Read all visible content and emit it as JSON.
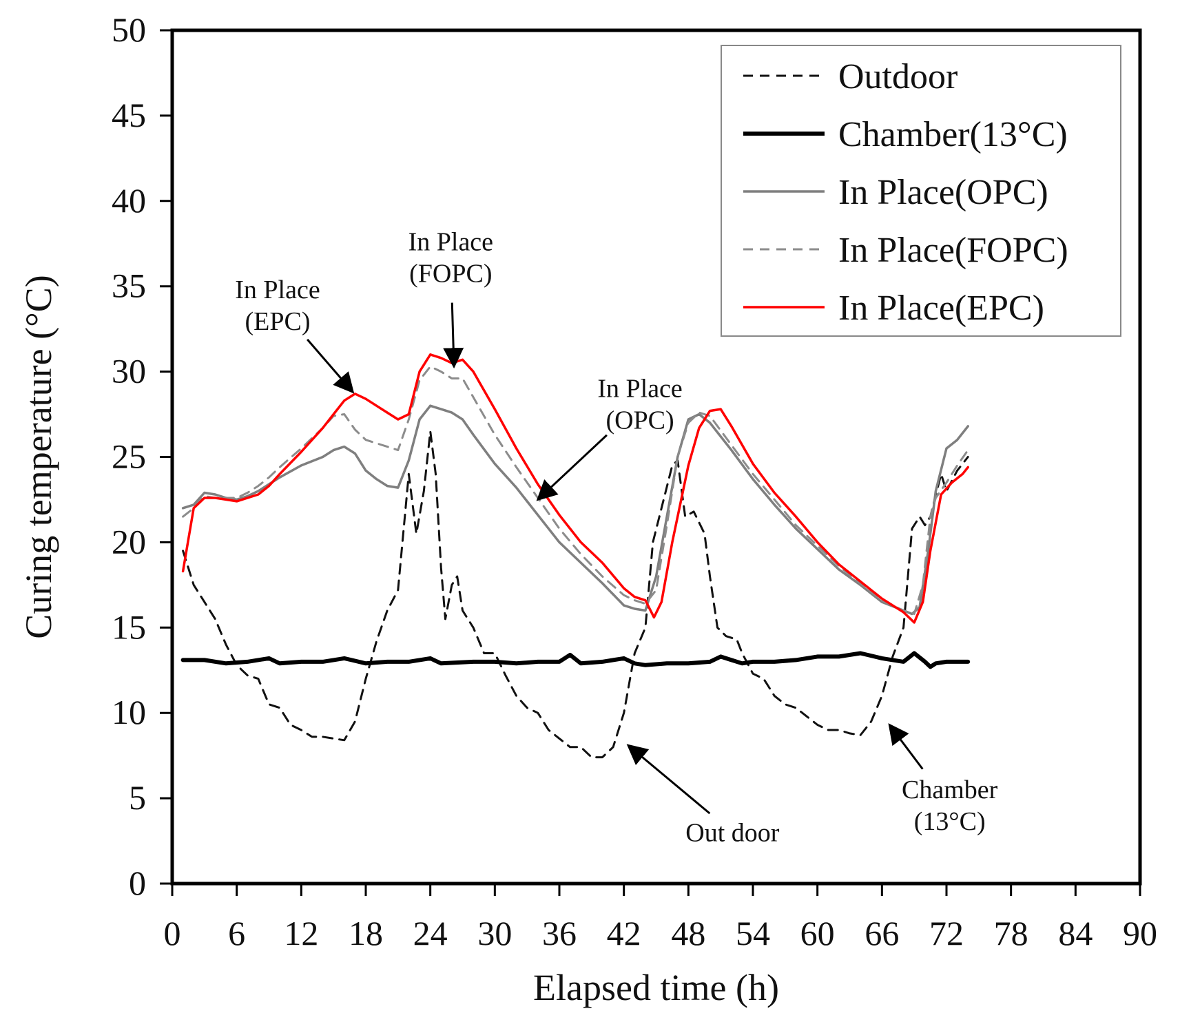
{
  "chart_data": {
    "type": "line",
    "title": "",
    "xlabel": "Elapsed time (h)",
    "ylabel": "Curing temperature (°C)",
    "xlim": [
      0,
      90
    ],
    "ylim": [
      0,
      50
    ],
    "x_ticks": [
      "0",
      "6",
      "12",
      "18",
      "24",
      "30",
      "36",
      "42",
      "48",
      "54",
      "60",
      "66",
      "72",
      "78",
      "84",
      "90"
    ],
    "y_ticks": [
      "0",
      "5",
      "10",
      "15",
      "20",
      "25",
      "30",
      "35",
      "40",
      "45",
      "50"
    ],
    "grid": false,
    "legend_position": "top-right",
    "series": [
      {
        "name": "Outdoor",
        "color": "#111111",
        "style": "dashed",
        "points": [
          [
            1,
            19.5
          ],
          [
            2,
            17.5
          ],
          [
            3,
            16.5
          ],
          [
            4,
            15.5
          ],
          [
            5,
            14
          ],
          [
            6,
            12.8
          ],
          [
            7,
            12.2
          ],
          [
            8,
            12
          ],
          [
            9,
            10.5
          ],
          [
            10,
            10.3
          ],
          [
            11,
            9.3
          ],
          [
            12,
            9
          ],
          [
            13,
            8.6
          ],
          [
            14,
            8.6
          ],
          [
            15,
            8.5
          ],
          [
            16,
            8.4
          ],
          [
            17,
            9.5
          ],
          [
            18,
            12
          ],
          [
            19,
            14.2
          ],
          [
            20,
            16
          ],
          [
            21,
            17.2
          ],
          [
            22,
            24
          ],
          [
            22.7,
            20.5
          ],
          [
            23.4,
            23
          ],
          [
            24,
            26.5
          ],
          [
            24.5,
            24
          ],
          [
            25,
            18.5
          ],
          [
            25.4,
            15.5
          ],
          [
            26,
            17.5
          ],
          [
            26.5,
            18
          ],
          [
            27,
            16
          ],
          [
            28,
            15
          ],
          [
            29,
            13.5
          ],
          [
            30,
            13.5
          ],
          [
            31,
            12.2
          ],
          [
            32,
            11
          ],
          [
            33,
            10.3
          ],
          [
            34,
            10
          ],
          [
            35,
            9
          ],
          [
            36,
            8.5
          ],
          [
            37,
            8
          ],
          [
            38,
            8
          ],
          [
            39,
            7.4
          ],
          [
            40,
            7.4
          ],
          [
            41,
            8
          ],
          [
            42,
            10
          ],
          [
            43,
            13.5
          ],
          [
            44,
            15
          ],
          [
            44.7,
            20
          ],
          [
            45.5,
            22
          ],
          [
            46.5,
            24.5
          ],
          [
            47,
            24.8
          ],
          [
            47.7,
            21.5
          ],
          [
            48.5,
            21.8
          ],
          [
            49.5,
            20.5
          ],
          [
            50,
            18
          ],
          [
            50.7,
            15
          ],
          [
            51.5,
            14.5
          ],
          [
            52.5,
            14.3
          ],
          [
            53,
            13.5
          ],
          [
            54,
            12.3
          ],
          [
            55,
            12
          ],
          [
            56,
            11
          ],
          [
            57,
            10.5
          ],
          [
            58,
            10.3
          ],
          [
            59,
            9.8
          ],
          [
            60,
            9.3
          ],
          [
            61,
            9
          ],
          [
            62,
            9
          ],
          [
            63,
            8.8
          ],
          [
            64,
            8.7
          ],
          [
            65,
            9.5
          ],
          [
            66,
            11
          ],
          [
            67,
            13.3
          ],
          [
            68,
            15
          ],
          [
            68.8,
            20.8
          ],
          [
            69.5,
            21.5
          ],
          [
            70,
            21
          ],
          [
            70.5,
            21.5
          ],
          [
            71.5,
            24
          ],
          [
            72,
            23
          ],
          [
            73,
            24.2
          ],
          [
            74,
            25
          ]
        ]
      },
      {
        "name": "Chamber(13°C)",
        "color": "#000000",
        "style": "solid-thick",
        "points": [
          [
            1,
            13.1
          ],
          [
            3,
            13.1
          ],
          [
            5,
            12.9
          ],
          [
            7,
            13.0
          ],
          [
            9,
            13.2
          ],
          [
            10,
            12.9
          ],
          [
            12,
            13.0
          ],
          [
            14,
            13.0
          ],
          [
            16,
            13.2
          ],
          [
            18,
            12.9
          ],
          [
            20,
            13.0
          ],
          [
            22,
            13.0
          ],
          [
            24,
            13.2
          ],
          [
            25,
            12.9
          ],
          [
            28,
            13.0
          ],
          [
            30,
            13.0
          ],
          [
            32,
            12.9
          ],
          [
            34,
            13.0
          ],
          [
            36,
            13.0
          ],
          [
            37,
            13.4
          ],
          [
            38,
            12.9
          ],
          [
            40,
            13.0
          ],
          [
            42,
            13.2
          ],
          [
            43,
            12.9
          ],
          [
            44,
            12.8
          ],
          [
            46,
            12.9
          ],
          [
            48,
            12.9
          ],
          [
            50,
            13.0
          ],
          [
            51,
            13.3
          ],
          [
            52,
            13.1
          ],
          [
            53,
            12.9
          ],
          [
            54,
            13.0
          ],
          [
            56,
            13.0
          ],
          [
            58,
            13.1
          ],
          [
            60,
            13.3
          ],
          [
            62,
            13.3
          ],
          [
            64,
            13.5
          ],
          [
            66,
            13.2
          ],
          [
            68,
            13.0
          ],
          [
            69,
            13.5
          ],
          [
            70,
            13.0
          ],
          [
            70.5,
            12.7
          ],
          [
            71,
            12.9
          ],
          [
            72,
            13.0
          ],
          [
            74,
            13.0
          ]
        ]
      },
      {
        "name": "In Place(OPC)",
        "color": "#7f7f7f",
        "style": "solid",
        "points": [
          [
            1,
            22
          ],
          [
            2,
            22.2
          ],
          [
            3,
            22.9
          ],
          [
            4,
            22.8
          ],
          [
            5,
            22.6
          ],
          [
            6,
            22.5
          ],
          [
            7,
            22.7
          ],
          [
            8,
            23.0
          ],
          [
            9,
            23.4
          ],
          [
            10,
            23.8
          ],
          [
            12,
            24.5
          ],
          [
            14,
            25.0
          ],
          [
            15,
            25.4
          ],
          [
            16,
            25.6
          ],
          [
            17,
            25.2
          ],
          [
            18,
            24.2
          ],
          [
            19,
            23.7
          ],
          [
            20,
            23.3
          ],
          [
            21,
            23.2
          ],
          [
            22,
            24.8
          ],
          [
            23,
            27.2
          ],
          [
            24,
            28.0
          ],
          [
            25,
            27.8
          ],
          [
            26,
            27.6
          ],
          [
            27,
            27.2
          ],
          [
            28,
            26.3
          ],
          [
            30,
            24.6
          ],
          [
            32,
            23.2
          ],
          [
            34,
            21.6
          ],
          [
            36,
            20.0
          ],
          [
            38,
            18.8
          ],
          [
            40,
            17.6
          ],
          [
            42,
            16.3
          ],
          [
            43,
            16.1
          ],
          [
            44,
            16.0
          ],
          [
            45,
            18.0
          ],
          [
            46,
            21.5
          ],
          [
            47,
            25.0
          ],
          [
            48,
            27.2
          ],
          [
            49,
            27.5
          ],
          [
            50,
            27.0
          ],
          [
            52,
            25.4
          ],
          [
            54,
            23.7
          ],
          [
            56,
            22.2
          ],
          [
            58,
            20.8
          ],
          [
            60,
            19.6
          ],
          [
            62,
            18.4
          ],
          [
            64,
            17.5
          ],
          [
            66,
            16.5
          ],
          [
            68,
            16.0
          ],
          [
            68.8,
            15.8
          ],
          [
            69.5,
            16.2
          ],
          [
            70.3,
            19.5
          ],
          [
            71,
            23.0
          ],
          [
            72,
            25.5
          ],
          [
            73,
            26.0
          ],
          [
            74,
            26.8
          ]
        ]
      },
      {
        "name": "In Place(FOPC)",
        "color": "#8c8c8c",
        "style": "dashed",
        "points": [
          [
            1,
            21.5
          ],
          [
            2,
            22.0
          ],
          [
            3,
            22.7
          ],
          [
            4,
            22.6
          ],
          [
            5,
            22.6
          ],
          [
            6,
            22.6
          ],
          [
            7,
            22.9
          ],
          [
            8,
            23.3
          ],
          [
            9,
            23.8
          ],
          [
            10,
            24.4
          ],
          [
            12,
            25.5
          ],
          [
            14,
            26.7
          ],
          [
            15,
            27.4
          ],
          [
            16,
            27.5
          ],
          [
            17,
            26.6
          ],
          [
            18,
            26.0
          ],
          [
            19,
            25.8
          ],
          [
            20,
            25.6
          ],
          [
            21,
            25.4
          ],
          [
            22,
            27.2
          ],
          [
            23,
            29.5
          ],
          [
            24,
            30.3
          ],
          [
            25,
            30.0
          ],
          [
            26,
            29.6
          ],
          [
            27,
            29.6
          ],
          [
            28,
            28.5
          ],
          [
            30,
            26.3
          ],
          [
            32,
            24.4
          ],
          [
            34,
            22.6
          ],
          [
            36,
            20.8
          ],
          [
            38,
            19.3
          ],
          [
            40,
            18.0
          ],
          [
            42,
            16.9
          ],
          [
            43,
            16.6
          ],
          [
            44,
            16.4
          ],
          [
            45,
            17.2
          ],
          [
            46,
            21.0
          ],
          [
            47,
            25.0
          ],
          [
            48,
            27.0
          ],
          [
            49,
            27.6
          ],
          [
            50,
            27.4
          ],
          [
            52,
            25.7
          ],
          [
            54,
            24.0
          ],
          [
            56,
            22.5
          ],
          [
            58,
            21.0
          ],
          [
            60,
            19.8
          ],
          [
            62,
            18.6
          ],
          [
            64,
            17.6
          ],
          [
            66,
            16.6
          ],
          [
            68,
            16.0
          ],
          [
            69,
            15.8
          ],
          [
            69.8,
            17.5
          ],
          [
            70.5,
            21.5
          ],
          [
            71,
            22.6
          ],
          [
            72,
            23.5
          ],
          [
            73,
            24.5
          ],
          [
            74,
            25.4
          ]
        ]
      },
      {
        "name": "In Place(EPC)",
        "color": "#ff0000",
        "style": "solid",
        "points": [
          [
            1,
            18.3
          ],
          [
            2,
            22.0
          ],
          [
            3,
            22.6
          ],
          [
            4,
            22.6
          ],
          [
            5,
            22.5
          ],
          [
            6,
            22.4
          ],
          [
            7,
            22.6
          ],
          [
            8,
            22.8
          ],
          [
            9,
            23.3
          ],
          [
            10,
            24.0
          ],
          [
            12,
            25.3
          ],
          [
            14,
            26.7
          ],
          [
            15,
            27.5
          ],
          [
            16,
            28.3
          ],
          [
            17,
            28.7
          ],
          [
            18,
            28.4
          ],
          [
            19,
            28.0
          ],
          [
            20,
            27.6
          ],
          [
            21,
            27.2
          ],
          [
            22,
            27.5
          ],
          [
            23,
            30.0
          ],
          [
            24,
            31.0
          ],
          [
            25,
            30.8
          ],
          [
            26,
            30.5
          ],
          [
            27,
            30.7
          ],
          [
            28,
            30.0
          ],
          [
            30,
            27.8
          ],
          [
            32,
            25.5
          ],
          [
            34,
            23.4
          ],
          [
            36,
            21.6
          ],
          [
            38,
            20.0
          ],
          [
            40,
            18.8
          ],
          [
            42,
            17.3
          ],
          [
            43,
            16.8
          ],
          [
            44,
            16.6
          ],
          [
            44.8,
            15.6
          ],
          [
            45.5,
            16.5
          ],
          [
            46.5,
            20.0
          ],
          [
            48,
            24.5
          ],
          [
            49,
            26.7
          ],
          [
            50,
            27.7
          ],
          [
            51,
            27.8
          ],
          [
            52,
            26.8
          ],
          [
            54,
            24.6
          ],
          [
            56,
            22.9
          ],
          [
            58,
            21.5
          ],
          [
            60,
            20.0
          ],
          [
            62,
            18.7
          ],
          [
            64,
            17.7
          ],
          [
            66,
            16.7
          ],
          [
            68,
            15.9
          ],
          [
            69,
            15.3
          ],
          [
            69.8,
            16.5
          ],
          [
            70.5,
            19.5
          ],
          [
            71.5,
            22.8
          ],
          [
            72.5,
            23.5
          ],
          [
            73.5,
            24.0
          ],
          [
            74,
            24.4
          ]
        ]
      }
    ],
    "annotations": [
      {
        "lines": [
          "In Place",
          "(EPC)"
        ],
        "at": [
          9.8,
          33.9
        ],
        "arrow_to": [
          16.8,
          28.8
        ]
      },
      {
        "lines": [
          "In Place",
          "(FOPC)"
        ],
        "at": [
          25.9,
          36.7
        ],
        "arrow_to": [
          26.2,
          30.3
        ]
      },
      {
        "lines": [
          "In Place",
          "(OPC)"
        ],
        "at": [
          43.5,
          28.1
        ],
        "arrow_to": [
          34.0,
          22.5
        ]
      },
      {
        "lines": [
          "Out door"
        ],
        "at": [
          52.1,
          3.0
        ],
        "arrow_to": [
          42.4,
          8.1
        ]
      },
      {
        "lines": [
          "Chamber",
          "(13°C)"
        ],
        "at": [
          72.3,
          4.6
        ],
        "arrow_to": [
          66.7,
          9.3
        ]
      }
    ]
  }
}
